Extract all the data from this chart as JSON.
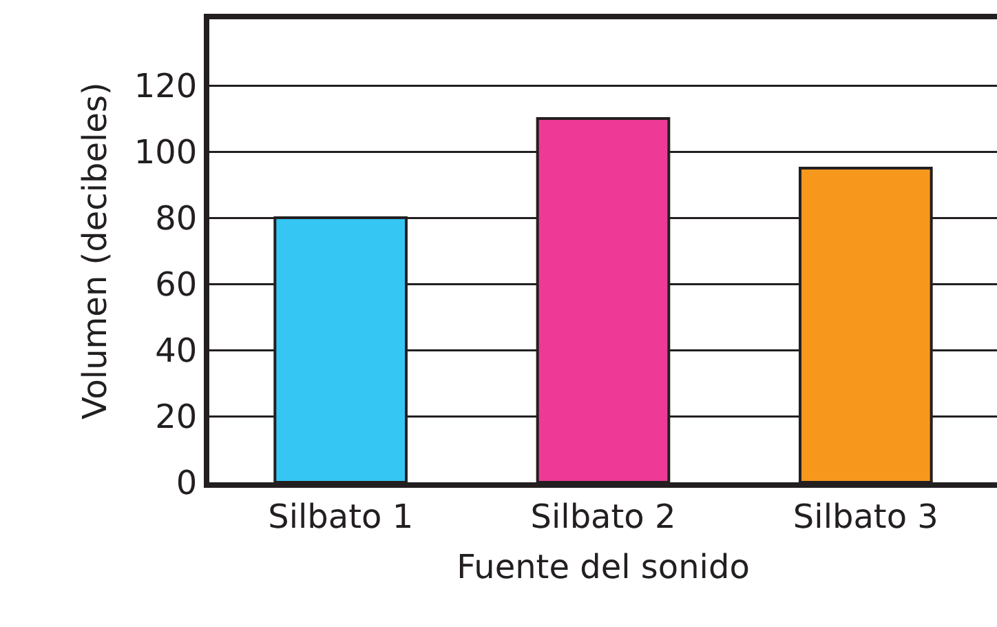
{
  "chart_data": {
    "type": "bar",
    "xlabel": "Fuente del sonido",
    "ylabel": "Volumen (decibeles)",
    "categories": [
      "Silbato 1",
      "Silbato 2",
      "Silbato 3"
    ],
    "values": [
      80,
      110,
      95
    ],
    "colors": [
      "#35c6f4",
      "#ee3a96",
      "#f7981d"
    ],
    "ylim": [
      0,
      140
    ],
    "yticks": [
      0,
      20,
      40,
      60,
      80,
      100,
      120
    ],
    "grid": "y"
  }
}
